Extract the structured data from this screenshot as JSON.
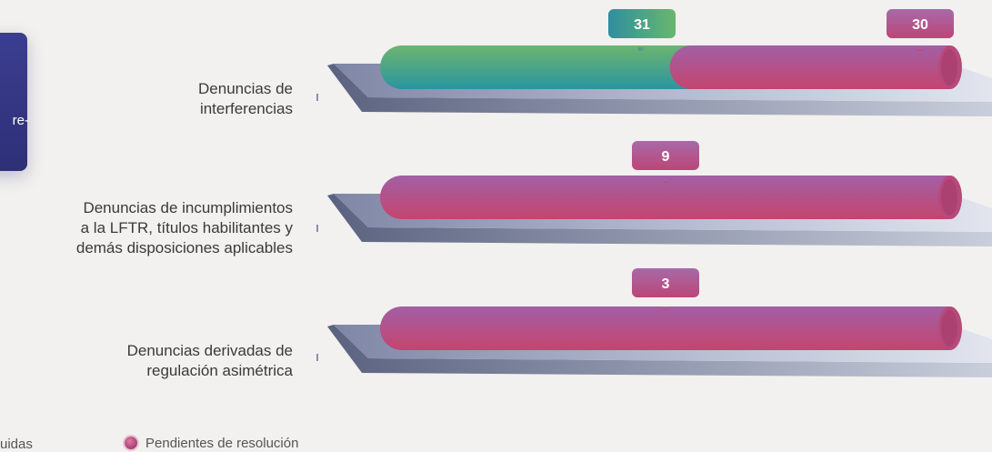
{
  "side_card": {
    "text": "re-"
  },
  "chart_data": {
    "type": "bar",
    "orientation": "horizontal",
    "stacked": true,
    "categories": [
      "Denuncias de interferencias",
      "Denuncias de incumplimientos a la LFTR, títulos habilitantes y demás disposiciones aplicables",
      "Denuncias derivadas de regulación asimétrica"
    ],
    "category_lines": [
      [
        "Denuncias de",
        "interferencias"
      ],
      [
        "Denuncias de incumplimientos",
        "a la LFTR, títulos habilitantes y",
        "demás disposiciones aplicables"
      ],
      [
        "Denuncias derivadas de",
        "regulación asimétrica"
      ]
    ],
    "series": [
      {
        "name": "…uidas",
        "color": "#3fa48a",
        "values": [
          31,
          0,
          0
        ]
      },
      {
        "name": "Pendientes de resolución",
        "color": "#b2457a",
        "values": [
          30,
          9,
          3
        ]
      }
    ],
    "data_labels": [
      [
        "31",
        "30"
      ],
      [
        "9"
      ],
      [
        "3"
      ]
    ],
    "legend": "bottom"
  },
  "legend": {
    "left_text": "uidas",
    "right_text": "Pendientes de resolución"
  }
}
